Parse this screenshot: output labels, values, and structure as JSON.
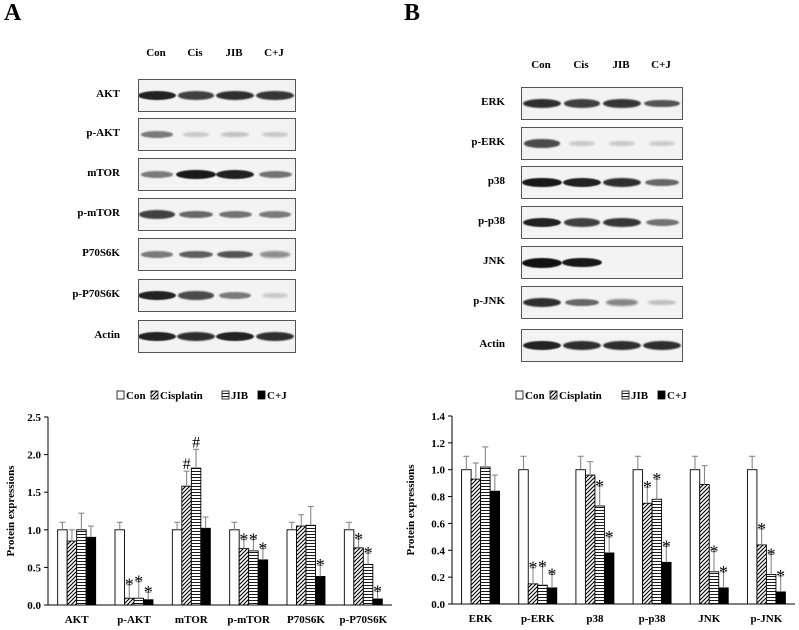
{
  "panels": {
    "A": {
      "letter": "A"
    },
    "B": {
      "letter": "B"
    }
  },
  "blots": {
    "A": {
      "lanes": [
        "Con",
        "Cis",
        "JIB",
        "C+J"
      ],
      "rows": [
        {
          "label": "AKT",
          "intensity": [
            0.9,
            0.75,
            0.85,
            0.8
          ]
        },
        {
          "label": "p-AKT",
          "intensity": [
            0.45,
            0.05,
            0.08,
            0.05
          ]
        },
        {
          "label": "mTOR",
          "intensity": [
            0.45,
            0.95,
            0.9,
            0.5
          ]
        },
        {
          "label": "p-mTOR",
          "intensity": [
            0.75,
            0.55,
            0.5,
            0.45
          ]
        },
        {
          "label": "P70S6K",
          "intensity": [
            0.45,
            0.6,
            0.65,
            0.35
          ]
        },
        {
          "label": "p-P70S6K",
          "intensity": [
            0.9,
            0.7,
            0.45,
            0.05
          ]
        },
        {
          "label": "Actin",
          "intensity": [
            0.9,
            0.85,
            0.9,
            0.85
          ]
        }
      ]
    },
    "B": {
      "lanes": [
        "Con",
        "Cis",
        "JIB",
        "C+J"
      ],
      "rows": [
        {
          "label": "ERK",
          "intensity": [
            0.85,
            0.75,
            0.8,
            0.65
          ]
        },
        {
          "label": "p-ERK",
          "intensity": [
            0.7,
            0.05,
            0.05,
            0.04
          ]
        },
        {
          "label": "p38",
          "intensity": [
            0.95,
            0.9,
            0.85,
            0.55
          ]
        },
        {
          "label": "p-p38",
          "intensity": [
            0.9,
            0.75,
            0.8,
            0.5
          ]
        },
        {
          "label": "JNK",
          "intensity": [
            1.0,
            0.95,
            0.02,
            0.02
          ]
        },
        {
          "label": "p-JNK",
          "intensity": [
            0.85,
            0.55,
            0.4,
            0.1
          ]
        },
        {
          "label": "Actin",
          "intensity": [
            0.9,
            0.85,
            0.85,
            0.85
          ]
        }
      ]
    }
  },
  "chart_data": [
    {
      "type": "bar",
      "title": "",
      "xlabel": "",
      "ylabel": "Protein expressions",
      "ylim": [
        0,
        2.5
      ],
      "yticks": [
        "0.0",
        "0.5",
        "1.0",
        "1.5",
        "2.0",
        "2.5"
      ],
      "categories": [
        "AKT",
        "p-AKT",
        "mTOR",
        "p-mTOR",
        "P70S6K",
        "p-P70S6K"
      ],
      "legend_position": "top",
      "series": [
        {
          "name": "Con",
          "pattern": "white",
          "values": [
            1.0,
            1.0,
            1.0,
            1.0,
            1.0,
            1.0
          ],
          "errors": [
            0.1,
            0.1,
            0.1,
            0.1,
            0.1,
            0.1
          ]
        },
        {
          "name": "Cisplatin",
          "pattern": "diagonal",
          "values": [
            0.85,
            0.09,
            1.58,
            0.75,
            1.05,
            0.76
          ],
          "errors": [
            0.15,
            0.18,
            0.2,
            0.12,
            0.15,
            0.12
          ]
        },
        {
          "name": "JIB",
          "pattern": "horizontal",
          "values": [
            1.0,
            0.09,
            1.82,
            0.72,
            1.06,
            0.54
          ],
          "errors": [
            0.22,
            0.22,
            0.25,
            0.15,
            0.25,
            0.15
          ]
        },
        {
          "name": "C+J",
          "pattern": "black",
          "values": [
            0.9,
            0.07,
            1.02,
            0.6,
            0.38,
            0.08
          ],
          "errors": [
            0.15,
            0.1,
            0.15,
            0.15,
            0.15,
            0.1
          ]
        }
      ],
      "annotations": [
        {
          "category": 1,
          "series": 1,
          "text": "*"
        },
        {
          "category": 1,
          "series": 2,
          "text": "*"
        },
        {
          "category": 1,
          "series": 3,
          "text": "*"
        },
        {
          "category": 2,
          "series": 1,
          "text": "#"
        },
        {
          "category": 2,
          "series": 2,
          "text": "#"
        },
        {
          "category": 3,
          "series": 1,
          "text": "*"
        },
        {
          "category": 3,
          "series": 2,
          "text": "*"
        },
        {
          "category": 3,
          "series": 3,
          "text": "*"
        },
        {
          "category": 4,
          "series": 3,
          "text": "*"
        },
        {
          "category": 5,
          "series": 1,
          "text": "*"
        },
        {
          "category": 5,
          "series": 2,
          "text": "*"
        },
        {
          "category": 5,
          "series": 3,
          "text": "*"
        }
      ]
    },
    {
      "type": "bar",
      "title": "",
      "xlabel": "",
      "ylabel": "Protein expressions",
      "ylim": [
        0,
        1.4
      ],
      "yticks": [
        "0.0",
        "0.2",
        "0.4",
        "0.6",
        "0.8",
        "1.0",
        "1.2",
        "1.4"
      ],
      "categories": [
        "ERK",
        "p-ERK",
        "p38",
        "p-p38",
        "JNK",
        "p-JNK"
      ],
      "legend_position": "top",
      "series": [
        {
          "name": "Con",
          "pattern": "white",
          "values": [
            1.0,
            1.0,
            1.0,
            1.0,
            1.0,
            1.0
          ],
          "errors": [
            0.1,
            0.1,
            0.1,
            0.1,
            0.1,
            0.1
          ]
        },
        {
          "name": "Cisplatin",
          "pattern": "diagonal",
          "values": [
            0.93,
            0.15,
            0.96,
            0.75,
            0.89,
            0.44
          ],
          "errors": [
            0.12,
            0.12,
            0.1,
            0.12,
            0.14,
            0.12
          ]
        },
        {
          "name": "JIB",
          "pattern": "horizontal",
          "values": [
            1.02,
            0.14,
            0.73,
            0.78,
            0.24,
            0.22
          ],
          "errors": [
            0.15,
            0.14,
            0.15,
            0.15,
            0.15,
            0.15
          ]
        },
        {
          "name": "C+J",
          "pattern": "black",
          "values": [
            0.84,
            0.12,
            0.38,
            0.31,
            0.12,
            0.09
          ],
          "errors": [
            0.12,
            0.1,
            0.12,
            0.12,
            0.12,
            0.12
          ]
        }
      ],
      "annotations": [
        {
          "category": 1,
          "series": 1,
          "text": "*"
        },
        {
          "category": 1,
          "series": 2,
          "text": "*"
        },
        {
          "category": 1,
          "series": 3,
          "text": "*"
        },
        {
          "category": 2,
          "series": 2,
          "text": "*"
        },
        {
          "category": 2,
          "series": 3,
          "text": "*"
        },
        {
          "category": 3,
          "series": 1,
          "text": "*"
        },
        {
          "category": 3,
          "series": 2,
          "text": "*"
        },
        {
          "category": 3,
          "series": 3,
          "text": "*"
        },
        {
          "category": 4,
          "series": 2,
          "text": "*"
        },
        {
          "category": 4,
          "series": 3,
          "text": "*"
        },
        {
          "category": 5,
          "series": 1,
          "text": "*"
        },
        {
          "category": 5,
          "series": 2,
          "text": "*"
        },
        {
          "category": 5,
          "series": 3,
          "text": "*"
        }
      ]
    }
  ]
}
